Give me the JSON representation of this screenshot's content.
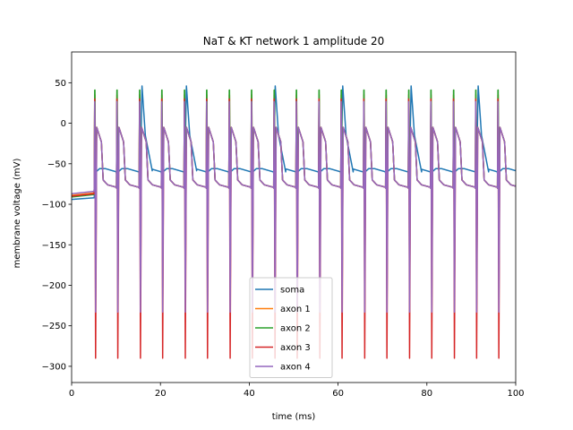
{
  "chart_data": {
    "type": "line",
    "title": "NaT & KT network 1 amplitude 20",
    "xlabel": "time (ms)",
    "ylabel": "membrane voltage (mV)",
    "xlim": [
      0,
      100
    ],
    "ylim": [
      -320,
      88
    ],
    "xticks": [
      0,
      20,
      40,
      60,
      80,
      100
    ],
    "yticks": [
      50,
      0,
      -50,
      -100,
      -150,
      -200,
      -250,
      -300
    ],
    "grid": false,
    "legend_position": "bottom-center",
    "spike_times_ms": [
      5.1,
      10.1,
      15.2,
      20.2,
      25.3,
      30.3,
      35.4,
      40.4,
      45.5,
      50.5,
      55.6,
      60.6,
      65.7,
      70.7,
      75.8,
      80.8,
      85.9,
      90.9,
      95.9
    ],
    "soma_spike_times_ms": [
      15.6,
      25.6,
      45.6,
      60.8,
      76.2,
      91.3
    ],
    "series": [
      {
        "name": "soma",
        "color": "#1f77b4",
        "resting_mV": -94,
        "plateau_mV": -60,
        "peak_mV": 46
      },
      {
        "name": "axon 1",
        "color": "#ff7f0e",
        "resting_mV": -89,
        "trough_mV": -80,
        "peak_mV": 58
      },
      {
        "name": "axon 2",
        "color": "#2ca02c",
        "resting_mV": -91,
        "trough_mV": -79,
        "peak_mV": 65
      },
      {
        "name": "axon 3",
        "color": "#d62728",
        "resting_mV": -90,
        "trough_mV": -290,
        "peak_mV": 52
      },
      {
        "name": "axon 4",
        "color": "#9467bd",
        "resting_mV": -87,
        "trough_mV": -233,
        "peak_mV": 48
      }
    ]
  }
}
